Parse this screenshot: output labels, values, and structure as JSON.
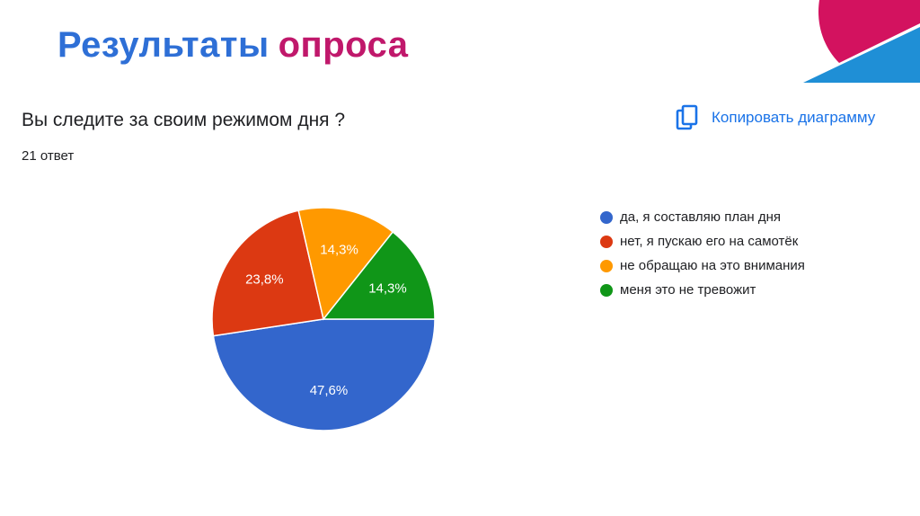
{
  "slide": {
    "title_part1": "Результаты",
    "title_part2": "опроса"
  },
  "form": {
    "question": "Вы следите за своим режимом дня ?",
    "responses": "21 ответ",
    "copy_label": "Копировать диаграмму",
    "copy_icon": "copy-icon"
  },
  "chart_data": {
    "type": "pie",
    "categories": [
      "да, я составляю план дня",
      "нет, я пускаю его на самотёк",
      "не обращаю на это внимания",
      "меня это не тревожит"
    ],
    "values": [
      47.6,
      23.8,
      14.3,
      14.3
    ],
    "labels": [
      "47,6%",
      "23,8%",
      "14,3%",
      "14,3%"
    ],
    "colors": [
      "#3366cc",
      "#dc3912",
      "#ff9900",
      "#109618"
    ],
    "legend_position": "right"
  },
  "theme": {
    "title_blue": "#2e6fd6",
    "title_magenta": "#c0186b",
    "link_blue": "#1a73e8"
  }
}
